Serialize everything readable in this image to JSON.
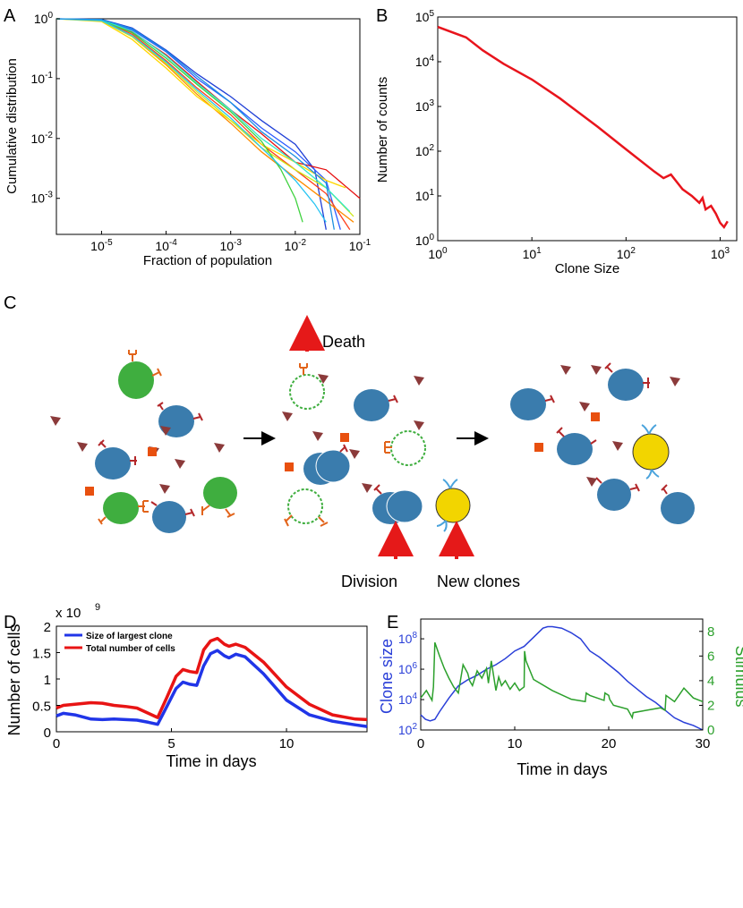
{
  "panels": {
    "A": {
      "label": "A",
      "chart_data": {
        "type": "line",
        "scale": "log-log",
        "xlabel": "Fraction of population",
        "ylabel": "Cumulative distribution",
        "xlim": [
          2e-06,
          0.1
        ],
        "ylim": [
          0.00025,
          1
        ],
        "xticks": [
          {
            "value": 1e-05,
            "base": "10",
            "exp": "-5"
          },
          {
            "value": 0.0001,
            "base": "10",
            "exp": "-4"
          },
          {
            "value": 0.001,
            "base": "10",
            "exp": "-3"
          },
          {
            "value": 0.01,
            "base": "10",
            "exp": "-2"
          },
          {
            "value": 0.1,
            "base": "10",
            "exp": "-1"
          }
        ],
        "yticks": [
          {
            "value": 1,
            "base": "10",
            "exp": "0"
          },
          {
            "value": 0.1,
            "base": "10",
            "exp": "-1"
          },
          {
            "value": 0.01,
            "base": "10",
            "exp": "-2"
          },
          {
            "value": 0.001,
            "base": "10",
            "exp": "-3"
          }
        ],
        "series": [
          {
            "color": "#1f3fd6",
            "x": [
              2e-06,
              1e-05,
              3e-05,
              0.0001,
              0.0003,
              0.001,
              0.003,
              0.01,
              0.02,
              0.03
            ],
            "y": [
              1,
              0.98,
              0.7,
              0.3,
              0.12,
              0.05,
              0.02,
              0.008,
              0.003,
              0.0003
            ]
          },
          {
            "color": "#2c5cff",
            "x": [
              2e-06,
              1e-05,
              3e-05,
              0.0001,
              0.0003,
              0.001,
              0.003,
              0.01,
              0.03,
              0.05
            ],
            "y": [
              1,
              0.97,
              0.65,
              0.28,
              0.1,
              0.04,
              0.015,
              0.006,
              0.002,
              0.0003
            ]
          },
          {
            "color": "#e61010",
            "x": [
              2e-06,
              1e-05,
              3e-05,
              0.0001,
              0.0003,
              0.001,
              0.003,
              0.01,
              0.03,
              0.1
            ],
            "y": [
              1,
              0.95,
              0.6,
              0.25,
              0.09,
              0.03,
              0.012,
              0.004,
              0.003,
              0.001
            ]
          },
          {
            "color": "#ff3d1a",
            "x": [
              2e-06,
              1e-05,
              3e-05,
              0.0001,
              0.0003,
              0.001,
              0.003,
              0.01,
              0.03,
              0.07
            ],
            "y": [
              1,
              0.94,
              0.55,
              0.2,
              0.07,
              0.025,
              0.008,
              0.003,
              0.0012,
              0.0003
            ]
          },
          {
            "color": "#ff8c00",
            "x": [
              2e-06,
              1e-05,
              3e-05,
              0.0001,
              0.0003,
              0.001,
              0.003,
              0.01,
              0.03,
              0.08
            ],
            "y": [
              1,
              0.93,
              0.5,
              0.17,
              0.055,
              0.018,
              0.006,
              0.0022,
              0.0009,
              0.0004
            ]
          },
          {
            "color": "#ffd700",
            "x": [
              2e-06,
              1e-05,
              3e-05,
              0.0001,
              0.0003,
              0.001,
              0.003,
              0.01,
              0.03,
              0.06
            ],
            "y": [
              1,
              0.9,
              0.45,
              0.15,
              0.05,
              0.02,
              0.008,
              0.004,
              0.002,
              0.0015
            ]
          },
          {
            "color": "#cde81a",
            "x": [
              2e-06,
              1e-05,
              3e-05,
              0.0001,
              0.0003,
              0.001,
              0.003,
              0.01,
              0.03,
              0.08
            ],
            "y": [
              1,
              0.92,
              0.5,
              0.18,
              0.06,
              0.02,
              0.007,
              0.003,
              0.0015,
              0.0005
            ]
          },
          {
            "color": "#3fd23f",
            "x": [
              2e-06,
              1e-05,
              3e-05,
              0.0001,
              0.0003,
              0.001,
              0.003,
              0.006,
              0.01,
              0.013
            ],
            "y": [
              1,
              0.95,
              0.58,
              0.22,
              0.08,
              0.028,
              0.009,
              0.003,
              0.001,
              0.0004
            ]
          },
          {
            "color": "#2ee8c8",
            "x": [
              2e-06,
              1e-05,
              3e-05,
              0.0001,
              0.0003,
              0.001,
              0.003,
              0.01,
              0.03,
              0.07
            ],
            "y": [
              1,
              0.96,
              0.62,
              0.24,
              0.085,
              0.03,
              0.01,
              0.004,
              0.0015,
              0.0006
            ]
          },
          {
            "color": "#27c4f2",
            "x": [
              2e-06,
              1e-05,
              3e-05,
              0.0001,
              0.0003,
              0.001,
              0.003,
              0.01,
              0.02,
              0.03
            ],
            "y": [
              1,
              0.93,
              0.52,
              0.19,
              0.065,
              0.022,
              0.007,
              0.002,
              0.0008,
              0.0004
            ]
          },
          {
            "color": "#1d8fe0",
            "x": [
              2e-06,
              1e-05,
              3e-05,
              0.0001,
              0.0003,
              0.001,
              0.003,
              0.01,
              0.03,
              0.04
            ],
            "y": [
              1,
              0.97,
              0.68,
              0.29,
              0.11,
              0.04,
              0.013,
              0.005,
              0.0018,
              0.0003
            ]
          }
        ]
      }
    },
    "B": {
      "label": "B",
      "chart_data": {
        "type": "line",
        "scale": "log-log",
        "xlabel": "Clone Size",
        "ylabel": "Number of counts",
        "xlim": [
          1,
          1500
        ],
        "ylim": [
          1,
          100000
        ],
        "xticks": [
          {
            "value": 1,
            "base": "10",
            "exp": "0"
          },
          {
            "value": 10,
            "base": "10",
            "exp": "1"
          },
          {
            "value": 100,
            "base": "10",
            "exp": "2"
          },
          {
            "value": 1000,
            "base": "10",
            "exp": "3"
          }
        ],
        "yticks": [
          {
            "value": 1,
            "base": "10",
            "exp": "0"
          },
          {
            "value": 10,
            "base": "10",
            "exp": "1"
          },
          {
            "value": 100,
            "base": "10",
            "exp": "2"
          },
          {
            "value": 1000,
            "base": "10",
            "exp": "3"
          },
          {
            "value": 10000,
            "base": "10",
            "exp": "4"
          },
          {
            "value": 100000,
            "base": "10",
            "exp": "5"
          }
        ],
        "series": [
          {
            "color": "#e8141c",
            "x": [
              1,
              2,
              3,
              5,
              10,
              20,
              50,
              100,
              200,
              250,
              300,
              400,
              500,
              600,
              650,
              700,
              800,
              900,
              1000,
              1100,
              1200
            ],
            "y": [
              60000,
              35000,
              18000,
              9000,
              4000,
              1500,
              350,
              110,
              35,
              25,
              30,
              14,
              10,
              7,
              9,
              5,
              6,
              4,
              2.5,
              2,
              2.7
            ]
          }
        ]
      }
    },
    "C": {
      "label": "C",
      "death": "Death",
      "division": "Division",
      "new_clones": "New clones"
    },
    "D": {
      "label": "D",
      "chart_data": {
        "type": "line",
        "xlabel": "Time in days",
        "ylabel": "Number of cells",
        "scale_note": "x 10",
        "scale_exp": "9",
        "xlim": [
          0,
          13.5
        ],
        "ylim": [
          0,
          2
        ],
        "xticks": [
          0,
          5,
          10
        ],
        "yticks": [
          0,
          0.5,
          1,
          1.5,
          2
        ],
        "legend": [
          "Size of largest clone",
          "Total number of cells"
        ],
        "series": [
          {
            "name": "Size of largest clone",
            "color": "#2035e8",
            "x": [
              0,
              0.3,
              0.8,
              1.5,
              2,
              2.5,
              3,
              3.5,
              4,
              4.4,
              4.8,
              5.2,
              5.5,
              5.8,
              6.1,
              6.4,
              6.7,
              7,
              7.3,
              7.5,
              7.8,
              8.2,
              9,
              10,
              11,
              12,
              13,
              13.5
            ],
            "y": [
              0.3,
              0.35,
              0.32,
              0.24,
              0.23,
              0.24,
              0.23,
              0.22,
              0.18,
              0.14,
              0.48,
              0.82,
              0.94,
              0.9,
              0.88,
              1.25,
              1.48,
              1.54,
              1.44,
              1.4,
              1.47,
              1.42,
              1.1,
              0.6,
              0.32,
              0.2,
              0.13,
              0.1
            ]
          },
          {
            "name": "Total number of cells",
            "color": "#e81414",
            "x": [
              0,
              0.3,
              0.8,
              1.5,
              2,
              2.5,
              3,
              3.5,
              4,
              4.4,
              4.8,
              5.2,
              5.5,
              5.8,
              6.1,
              6.4,
              6.7,
              7,
              7.3,
              7.5,
              7.8,
              8.2,
              9,
              10,
              11,
              12,
              13,
              13.5
            ],
            "y": [
              0.45,
              0.5,
              0.52,
              0.55,
              0.54,
              0.5,
              0.48,
              0.45,
              0.35,
              0.27,
              0.65,
              1.05,
              1.18,
              1.14,
              1.12,
              1.55,
              1.72,
              1.77,
              1.66,
              1.62,
              1.66,
              1.6,
              1.32,
              0.85,
              0.52,
              0.32,
              0.24,
              0.23
            ]
          }
        ]
      }
    },
    "E": {
      "label": "E",
      "chart_data": {
        "type": "line",
        "xlabel": "Time in days",
        "ylabel_left": "Clone size",
        "ylabel_right": "Stimulus",
        "xlim": [
          0,
          30
        ],
        "ylim_left_log10": [
          2,
          9.3
        ],
        "ylim_right": [
          0,
          9
        ],
        "xticks": [
          0,
          10,
          20,
          30
        ],
        "yticks_left": [
          {
            "value": 2,
            "base": "10",
            "exp": "2"
          },
          {
            "value": 4,
            "base": "10",
            "exp": "4"
          },
          {
            "value": 6,
            "base": "10",
            "exp": "6"
          },
          {
            "value": 8,
            "base": "10",
            "exp": "8"
          }
        ],
        "yticks_right": [
          0,
          2,
          4,
          6,
          8
        ],
        "series": [
          {
            "name": "Clone size",
            "axis": "left",
            "color": "#2a3fd8",
            "x": [
              0,
              0.5,
              1,
              1.5,
              2,
              3,
              4,
              5,
              6,
              7,
              8,
              9,
              10,
              11,
              12,
              13,
              13.5,
              14,
              15,
              16,
              17,
              18,
              19,
              20,
              21,
              22,
              23,
              24,
              25,
              26,
              27,
              28,
              29,
              30
            ],
            "y_log10": [
              3,
              2.7,
              2.6,
              2.7,
              3.2,
              4.1,
              4.9,
              5.3,
              5.6,
              6.0,
              6.3,
              6.7,
              7.2,
              7.5,
              8.1,
              8.7,
              8.8,
              8.8,
              8.7,
              8.4,
              8.0,
              7.2,
              6.8,
              6.3,
              5.8,
              5.2,
              4.7,
              4.2,
              3.8,
              3.3,
              2.8,
              2.5,
              2.3,
              2
            ]
          },
          {
            "name": "Stimulus",
            "axis": "right",
            "color": "#2ca02c",
            "x": [
              0,
              0.6,
              1.2,
              1.35,
              1.5,
              2,
              2.5,
              3,
              3.5,
              4,
              4.5,
              5,
              5.2,
              5.5,
              6,
              6.5,
              7,
              7.2,
              7.5,
              8,
              8.3,
              8.6,
              9,
              9.5,
              10,
              10.5,
              11,
              11.05,
              11.2,
              12,
              14,
              16,
              17.5,
              17.6,
              18,
              19.5,
              19.6,
              20,
              20.1,
              20.5,
              22,
              22.5,
              22.6,
              24,
              25.5,
              26,
              26.1,
              27,
              28,
              29,
              30
            ],
            "y": [
              2.6,
              3.2,
              2.4,
              3.5,
              7.1,
              6.0,
              5.0,
              4.2,
              3.5,
              3.0,
              5.3,
              4.6,
              4.0,
              3.6,
              4.8,
              4.2,
              5.0,
              3.8,
              5.6,
              3.2,
              4.3,
              3.6,
              4.0,
              3.3,
              3.8,
              3.2,
              3.5,
              6.4,
              5.6,
              4.1,
              3.2,
              2.5,
              2.3,
              3.0,
              2.8,
              2.4,
              3.0,
              2.8,
              2.5,
              2.0,
              1.7,
              1.0,
              1.4,
              1.6,
              1.8,
              1.6,
              2.8,
              2.3,
              3.4,
              2.6,
              2.3
            ]
          }
        ]
      }
    }
  }
}
